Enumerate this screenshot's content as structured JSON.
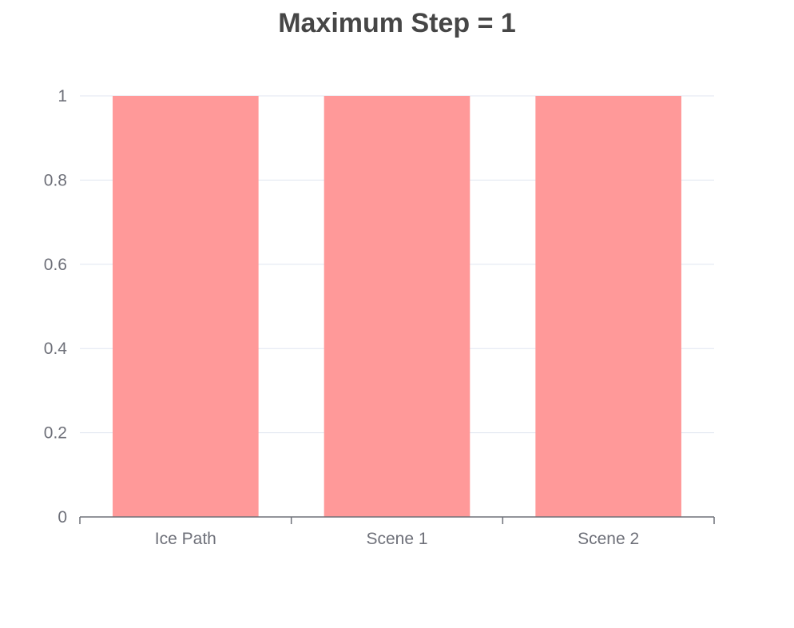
{
  "chart_data": {
    "type": "bar",
    "title": "Maximum Step = 1",
    "categories": [
      "Ice Path",
      "Scene 1",
      "Scene 2"
    ],
    "values": [
      1,
      1,
      1
    ],
    "ylim": [
      0,
      1
    ],
    "yticks": [
      "0",
      "0.2",
      "0.4",
      "0.6",
      "0.8",
      "1"
    ],
    "xlabel": "",
    "ylabel": "",
    "grid": true,
    "legend": "none",
    "bar_color": "#ff9999",
    "grid_color": "#e0e6f1",
    "axis_color": "#6e7079"
  }
}
